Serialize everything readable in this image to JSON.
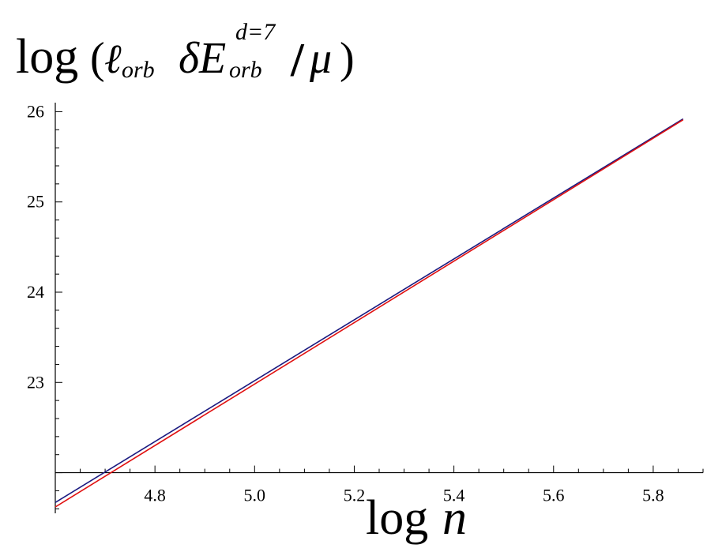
{
  "chart_data": {
    "type": "line",
    "title": "",
    "ylabel": {
      "prefix": "log",
      "open": "(",
      "ell": "ℓ",
      "ell_sub": "orb",
      "delta": "δ",
      "E": "E",
      "E_sup": "d=7",
      "E_sub": "orb",
      "slash": "/",
      "mu": "μ",
      "close": ")"
    },
    "xlabel": {
      "prefix": "log",
      "var": "n"
    },
    "xlim": [
      4.6,
      5.9
    ],
    "ylim": [
      21.55,
      26.1
    ],
    "x_axis_crosses_y": 22.0,
    "x_ticks": [
      4.8,
      5.0,
      5.2,
      5.4,
      5.6,
      5.8
    ],
    "x_tick_labels": [
      "4.8",
      "5.0",
      "5.2",
      "5.4",
      "5.6",
      "5.8"
    ],
    "y_ticks": [
      23,
      24,
      25,
      26
    ],
    "y_tick_labels": [
      "23",
      "24",
      "25",
      "26"
    ],
    "grid": false,
    "series": [
      {
        "color": "#1a1a80",
        "x": [
          4.6,
          5.86
        ],
        "y": [
          21.67,
          25.92
        ]
      },
      {
        "color": "#e01010",
        "x": [
          4.6,
          5.86
        ],
        "y": [
          21.62,
          25.91
        ]
      }
    ]
  }
}
